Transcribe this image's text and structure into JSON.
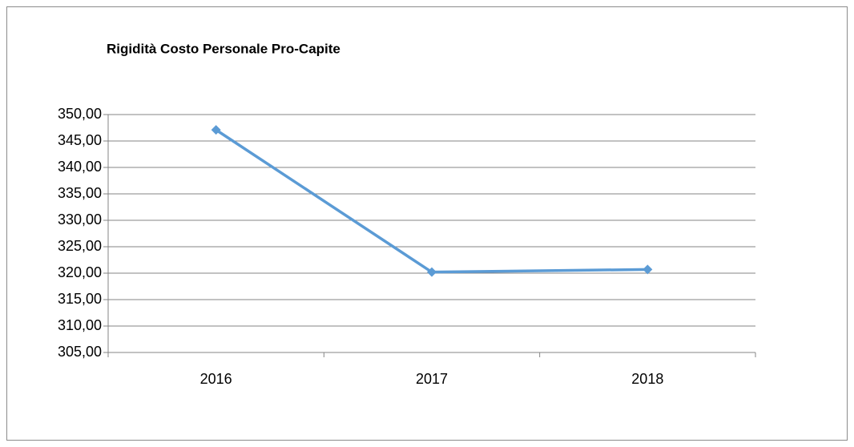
{
  "chart_data": {
    "type": "line",
    "title": "Rigidità Costo Personale Pro-Capite",
    "categories": [
      "2016",
      "2017",
      "2018"
    ],
    "values": [
      347.1,
      320.2,
      320.7
    ],
    "color": "#5b9bd5",
    "ylim": [
      305,
      350
    ],
    "yticks": [
      {
        "value": 305,
        "label": "305,00"
      },
      {
        "value": 310,
        "label": "310,00"
      },
      {
        "value": 315,
        "label": "315,00"
      },
      {
        "value": 320,
        "label": "320,00"
      },
      {
        "value": 325,
        "label": "325,00"
      },
      {
        "value": 330,
        "label": "330,00"
      },
      {
        "value": 335,
        "label": "335,00"
      },
      {
        "value": 340,
        "label": "340,00"
      },
      {
        "value": 345,
        "label": "345,00"
      },
      {
        "value": 350,
        "label": "350,00"
      }
    ],
    "grid": true
  }
}
